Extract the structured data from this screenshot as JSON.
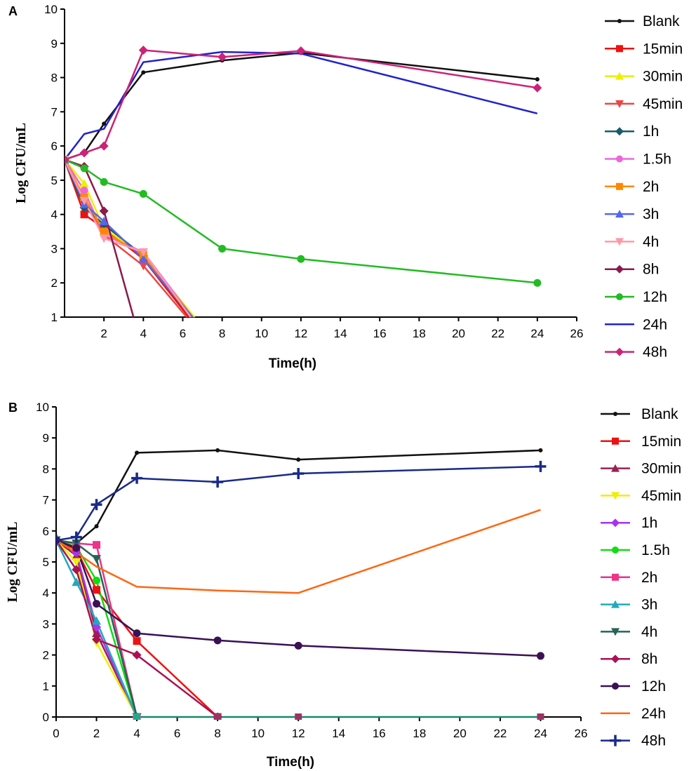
{
  "chart_data": [
    {
      "type": "line",
      "panel_label": "A",
      "xlabel": "Time(h)",
      "ylabel": "Log CFU/mL",
      "xlim": [
        0,
        26
      ],
      "ylim": [
        1,
        10
      ],
      "x_ticks": [
        2,
        4,
        6,
        8,
        10,
        12,
        14,
        16,
        18,
        20,
        22,
        24,
        26
      ],
      "y_ticks": [
        1,
        2,
        3,
        4,
        5,
        6,
        7,
        8,
        9,
        10
      ],
      "legend_position": "right",
      "series": [
        {
          "name": "Blank",
          "color": "#111111",
          "marker": "dot",
          "x": [
            0,
            1,
            2,
            4,
            8,
            12,
            24
          ],
          "y": [
            5.6,
            5.8,
            6.65,
            8.15,
            8.5,
            8.72,
            7.95
          ]
        },
        {
          "name": "15min",
          "color": "#ee1111",
          "marker": "square",
          "x": [
            0,
            1,
            2,
            4,
            6.3
          ],
          "y": [
            5.6,
            4.0,
            3.6,
            2.7,
            1.0
          ]
        },
        {
          "name": "30min",
          "color": "#eeee00",
          "marker": "triangle",
          "x": [
            0,
            1,
            2,
            4,
            6.6
          ],
          "y": [
            5.6,
            4.9,
            3.6,
            2.8,
            1.0
          ]
        },
        {
          "name": "45min",
          "color": "#ee4444",
          "marker": "triangle-down",
          "x": [
            0,
            1,
            2,
            4,
            6.2
          ],
          "y": [
            5.6,
            4.4,
            3.4,
            2.5,
            1.0
          ]
        },
        {
          "name": "1h",
          "color": "#1a5a6a",
          "marker": "diamond",
          "x": [
            0,
            1,
            2,
            4,
            6.4
          ],
          "y": [
            5.6,
            4.2,
            3.7,
            2.8,
            1.0
          ]
        },
        {
          "name": "1.5h",
          "color": "#ee66dd",
          "marker": "circle",
          "x": [
            0,
            1,
            2,
            4,
            6.5
          ],
          "y": [
            5.6,
            4.7,
            3.4,
            2.9,
            1.0
          ]
        },
        {
          "name": "2h",
          "color": "#ff8800",
          "marker": "square",
          "x": [
            0,
            1,
            2,
            4,
            6.5
          ],
          "y": [
            5.6,
            4.5,
            3.5,
            2.8,
            1.0
          ]
        },
        {
          "name": "3h",
          "color": "#5566ee",
          "marker": "triangle",
          "x": [
            0,
            1,
            2,
            4,
            6.5
          ],
          "y": [
            5.6,
            4.3,
            3.8,
            2.7,
            1.0
          ]
        },
        {
          "name": "4h",
          "color": "#ff99aa",
          "marker": "triangle-down",
          "x": [
            0,
            1,
            2,
            4,
            6.4
          ],
          "y": [
            5.6,
            4.4,
            3.3,
            2.9,
            1.0
          ]
        },
        {
          "name": "8h",
          "color": "#8b1a4a",
          "marker": "diamond",
          "x": [
            0,
            1,
            2,
            3.5
          ],
          "y": [
            5.6,
            5.4,
            4.1,
            1.0
          ]
        },
        {
          "name": "12h",
          "color": "#22bb22",
          "marker": "circle",
          "x": [
            0,
            1,
            2,
            4,
            8,
            12,
            24
          ],
          "y": [
            5.6,
            5.35,
            4.95,
            4.6,
            3.0,
            2.7,
            2.0
          ]
        },
        {
          "name": "24h",
          "color": "#2222cc",
          "marker": "none",
          "x": [
            0,
            1,
            2,
            4,
            8,
            12,
            24
          ],
          "y": [
            5.6,
            6.35,
            6.5,
            8.45,
            8.75,
            8.7,
            6.95
          ]
        },
        {
          "name": "48h",
          "color": "#cc2277",
          "marker": "diamond",
          "x": [
            0,
            1,
            2,
            4,
            8,
            12,
            24
          ],
          "y": [
            5.6,
            5.8,
            6.0,
            8.8,
            8.6,
            8.78,
            7.7
          ]
        }
      ]
    },
    {
      "type": "line",
      "panel_label": "B",
      "xlabel": "Time(h)",
      "ylabel": "Log CFU/mL",
      "xlim": [
        0,
        26
      ],
      "ylim": [
        0,
        10
      ],
      "x_ticks": [
        0,
        2,
        4,
        6,
        8,
        10,
        12,
        14,
        16,
        18,
        20,
        22,
        24,
        26
      ],
      "y_ticks": [
        0,
        1,
        2,
        3,
        4,
        5,
        6,
        7,
        8,
        9,
        10
      ],
      "legend_position": "right",
      "series": [
        {
          "name": "Blank",
          "color": "#111111",
          "marker": "dot",
          "x": [
            0,
            1,
            2,
            4,
            8,
            12,
            24
          ],
          "y": [
            5.7,
            5.6,
            6.15,
            8.52,
            8.6,
            8.3,
            8.6
          ]
        },
        {
          "name": "15min",
          "color": "#ee1111",
          "marker": "square",
          "x": [
            0,
            1,
            2,
            4,
            8
          ],
          "y": [
            5.7,
            5.4,
            4.1,
            2.45,
            0.0
          ]
        },
        {
          "name": "30min",
          "color": "#992255",
          "marker": "triangle",
          "x": [
            0,
            1,
            2,
            4
          ],
          "y": [
            5.7,
            5.2,
            2.7,
            0.0
          ]
        },
        {
          "name": "45min",
          "color": "#eeee00",
          "marker": "triangle-down",
          "x": [
            0,
            1,
            2,
            4
          ],
          "y": [
            5.7,
            5.0,
            2.4,
            0.0
          ]
        },
        {
          "name": "1h",
          "color": "#aa33ee",
          "marker": "diamond",
          "x": [
            0,
            1,
            2,
            4
          ],
          "y": [
            5.7,
            5.3,
            2.9,
            0.0
          ]
        },
        {
          "name": "1.5h",
          "color": "#11dd11",
          "marker": "circle",
          "x": [
            0,
            1,
            2,
            4
          ],
          "y": [
            5.7,
            5.5,
            4.4,
            0.0
          ]
        },
        {
          "name": "2h",
          "color": "#ee3388",
          "marker": "square",
          "x": [
            0,
            1,
            2,
            4
          ],
          "y": [
            5.7,
            5.6,
            5.55,
            0.0
          ]
        },
        {
          "name": "3h",
          "color": "#22aabb",
          "marker": "triangle",
          "x": [
            0,
            1,
            2,
            4
          ],
          "y": [
            5.7,
            4.35,
            3.1,
            0.0
          ]
        },
        {
          "name": "4h",
          "color": "#226655",
          "marker": "triangle-down",
          "x": [
            0,
            1,
            2,
            4
          ],
          "y": [
            5.7,
            5.6,
            5.1,
            0.0
          ]
        },
        {
          "name": "8h",
          "color": "#aa1155",
          "marker": "diamond",
          "x": [
            0,
            1,
            2,
            4,
            8
          ],
          "y": [
            5.7,
            4.75,
            2.5,
            2.0,
            0.0
          ]
        },
        {
          "name": "12h",
          "color": "#3a1155",
          "marker": "circle",
          "x": [
            0,
            1,
            2,
            4,
            8,
            12,
            24
          ],
          "y": [
            5.7,
            5.45,
            3.65,
            2.7,
            2.47,
            2.3,
            1.97
          ]
        },
        {
          "name": "24h",
          "color": "#ff6611",
          "marker": "none",
          "x": [
            0,
            1,
            2,
            4,
            8,
            12,
            24
          ],
          "y": [
            5.7,
            5.3,
            4.85,
            4.2,
            4.08,
            4.0,
            6.68
          ]
        },
        {
          "name": "48h",
          "color": "#1a2a88",
          "marker": "plus",
          "x": [
            0,
            1,
            2,
            4,
            8,
            12,
            24
          ],
          "y": [
            5.7,
            5.8,
            6.85,
            7.7,
            7.58,
            7.85,
            8.08
          ]
        }
      ],
      "zero_line_x": [
        4,
        24
      ],
      "zero_line_color": "#1a8866",
      "zero_markers": [
        {
          "x": 4,
          "color": "#22aa88",
          "marker": "square"
        },
        {
          "x": 8,
          "color": "#993366",
          "marker": "square"
        },
        {
          "x": 12,
          "color": "#993366",
          "marker": "square"
        },
        {
          "x": 24,
          "color": "#993366",
          "marker": "square"
        }
      ]
    }
  ]
}
